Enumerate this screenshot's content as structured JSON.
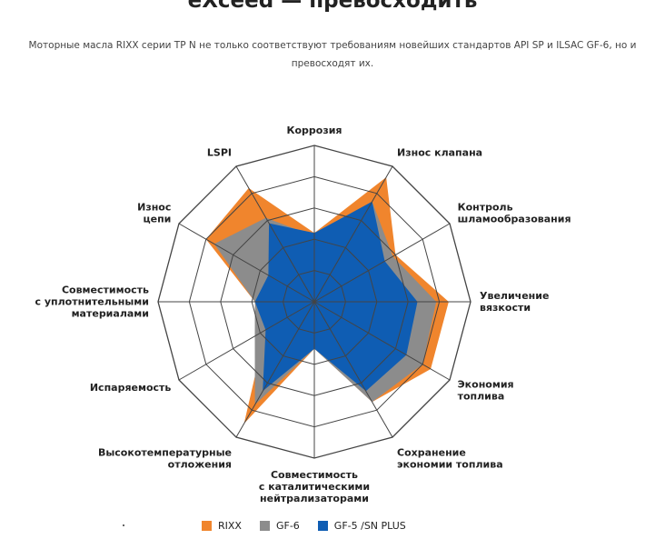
{
  "header": {
    "title": "eXceed — превосходить",
    "subtitle": "Моторные масла RIXX серии TP N не только соответствуют требованиям новейших стандартов API SP и ILSAC GF-6, но и превосходят их."
  },
  "colors": {
    "rixx": "#f0852d",
    "gf6": "#8c8c8c",
    "gf5": "#0f5db3",
    "grid": "#444444"
  },
  "chart_data": {
    "type": "radar",
    "title": "",
    "axes": [
      [
        "Коррозия"
      ],
      [
        "Износ клапана"
      ],
      [
        "Контроль",
        "шламообразования"
      ],
      [
        "Увеличение",
        "вязкости"
      ],
      [
        "Экономия",
        "топлива"
      ],
      [
        "Сохранение",
        "экономии топлива"
      ],
      [
        "Совместимость",
        "с каталитическими",
        "нейтрализаторами"
      ],
      [
        "Высокотемпературные",
        "отложения"
      ],
      [
        "Испаряемость"
      ],
      [
        "Совместимость",
        "с уплотнительными",
        "материалами"
      ],
      [
        "Износ",
        "цепи"
      ],
      [
        "LSPI"
      ]
    ],
    "scale": {
      "rings": 5,
      "max": 5
    },
    "series": [
      {
        "name": "RIXX",
        "color": "#f0852d",
        "values": [
          2.2,
          4.6,
          3.0,
          4.3,
          4.3,
          3.7,
          1.5,
          4.5,
          1.8,
          1.9,
          4.0,
          4.2
        ]
      },
      {
        "name": "GF-6",
        "color": "#8c8c8c",
        "values": [
          2.1,
          3.7,
          2.9,
          3.9,
          4.0,
          3.7,
          1.5,
          3.8,
          2.2,
          1.9,
          3.7,
          3.1
        ]
      },
      {
        "name": "GF-5 /SN PLUS",
        "color": "#0f5db3",
        "values": [
          2.2,
          3.7,
          2.6,
          3.3,
          3.4,
          3.3,
          1.5,
          3.3,
          1.8,
          1.9,
          1.7,
          2.9
        ]
      }
    ],
    "legend": [
      {
        "label": "RIXX"
      },
      {
        "label": "GF-6"
      },
      {
        "label": "GF-5 /SN PLUS"
      }
    ]
  }
}
